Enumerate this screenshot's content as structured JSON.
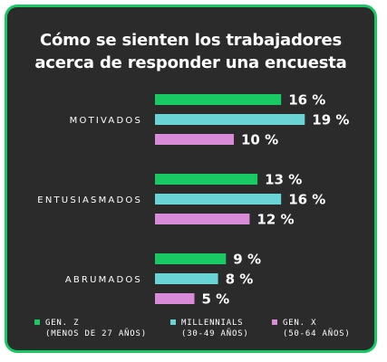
{
  "title_line1": "Cómo se sienten los trabajadores",
  "title_line2": "acerca de responder una encuesta",
  "chart_data": {
    "type": "bar",
    "orientation": "horizontal",
    "categories": [
      "MOTIVADOS",
      "ENTUSIASMADOS",
      "ABRUMADOS"
    ],
    "series": [
      {
        "name": "GEN. Z",
        "sub": "(MENOS DE 27 AÑOS)",
        "color": "#18c964",
        "values": [
          16,
          13,
          9
        ],
        "labels": [
          "16 %",
          "13 %",
          "9 %"
        ]
      },
      {
        "name": "MILLENNIALS",
        "sub": "(30-49 AÑOS)",
        "color": "#6ad3d6",
        "values": [
          19,
          16,
          8
        ],
        "labels": [
          "19 %",
          "16 %",
          "8 %"
        ]
      },
      {
        "name": "GEN. X",
        "sub": "(50-64 AÑOS)",
        "color": "#d98ad9",
        "values": [
          10,
          12,
          5
        ],
        "labels": [
          "10 %",
          "12 %",
          "5 %"
        ]
      }
    ],
    "unit": "%",
    "legend_position": "bottom"
  }
}
